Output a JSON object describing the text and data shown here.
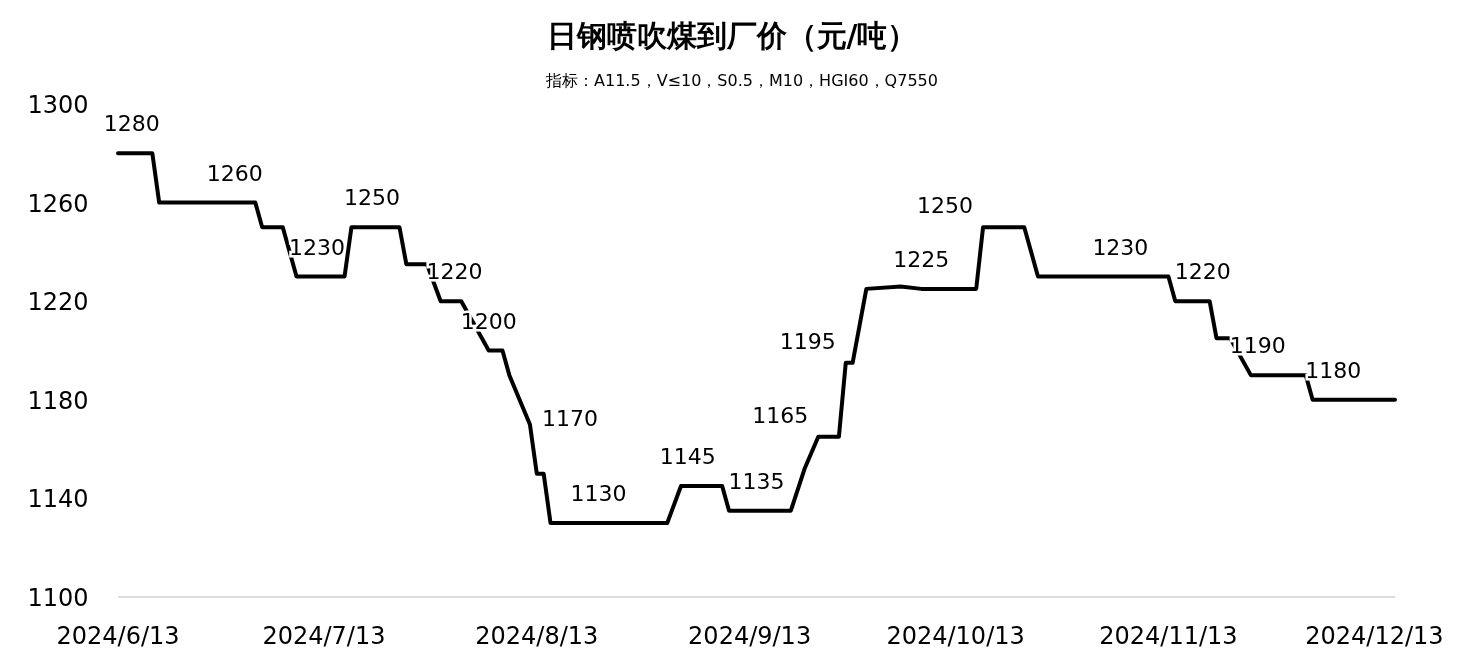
{
  "chart_data": {
    "type": "line",
    "title": "日钢喷吹煤到厂价（元/吨）",
    "subtitle": "指标：A11.5，V≤10，S0.5，M10，HGI60，Q7550",
    "xlim": [
      "2024-06-13",
      "2024-12-16"
    ],
    "xticks": [
      {
        "value": "2024-06-13",
        "label": "2024/6/13"
      },
      {
        "value": "2024-07-13",
        "label": "2024/7/13"
      },
      {
        "value": "2024-08-13",
        "label": "2024/8/13"
      },
      {
        "value": "2024-09-13",
        "label": "2024/9/13"
      },
      {
        "value": "2024-10-13",
        "label": "2024/10/13"
      },
      {
        "value": "2024-11-13",
        "label": "2024/11/13"
      },
      {
        "value": "2024-12-13",
        "label": "2024/12/13"
      }
    ],
    "ylim": [
      1100,
      1300
    ],
    "yticks": [
      1100,
      1140,
      1180,
      1220,
      1260,
      1300
    ],
    "grid": false,
    "marker": "none",
    "line_style": "solid",
    "series": [
      {
        "color": "#000000",
        "x": [
          "2024-06-13",
          "2024-06-18",
          "2024-06-19",
          "2024-07-03",
          "2024-07-04",
          "2024-07-07",
          "2024-07-09",
          "2024-07-16",
          "2024-07-17",
          "2024-07-24",
          "2024-07-25",
          "2024-07-28",
          "2024-07-30",
          "2024-08-02",
          "2024-08-06",
          "2024-08-08",
          "2024-08-09",
          "2024-08-12",
          "2024-08-13",
          "2024-08-14",
          "2024-08-15",
          "2024-09-01",
          "2024-09-03",
          "2024-09-09",
          "2024-09-10",
          "2024-09-19",
          "2024-09-21",
          "2024-09-23",
          "2024-09-26",
          "2024-09-27",
          "2024-09-28",
          "2024-09-30",
          "2024-10-05",
          "2024-10-08",
          "2024-10-16",
          "2024-10-17",
          "2024-10-23",
          "2024-10-25",
          "2024-11-13",
          "2024-11-14",
          "2024-11-19",
          "2024-11-20",
          "2024-11-22",
          "2024-11-25",
          "2024-12-03",
          "2024-12-04",
          "2024-12-16"
        ],
        "values": [
          1280,
          1280,
          1260,
          1260,
          1250,
          1250,
          1230,
          1230,
          1250,
          1250,
          1235,
          1235,
          1220,
          1220,
          1200,
          1200,
          1190,
          1170,
          1150,
          1150,
          1130,
          1130,
          1145,
          1145,
          1135,
          1135,
          1152,
          1165,
          1165,
          1195,
          1195,
          1225,
          1226,
          1225,
          1225,
          1250,
          1250,
          1230,
          1230,
          1220,
          1220,
          1205,
          1205,
          1190,
          1190,
          1180,
          1180
        ]
      }
    ],
    "annotations": [
      {
        "text": "1280",
        "x": "2024-06-15",
        "y": 1280
      },
      {
        "text": "1260",
        "x": "2024-06-30",
        "y": 1260
      },
      {
        "text": "1250",
        "x": "2024-07-20",
        "y": 1250
      },
      {
        "text": "1230",
        "x": "2024-07-12",
        "y": 1230
      },
      {
        "text": "1220",
        "x": "2024-08-01",
        "y": 1220
      },
      {
        "text": "1200",
        "x": "2024-08-06",
        "y": 1200
      },
      {
        "text": "1170",
        "x": "2024-08-12",
        "y": 1170
      },
      {
        "text": "1130",
        "x": "2024-08-22",
        "y": 1130
      },
      {
        "text": "1145",
        "x": "2024-09-04",
        "y": 1145
      },
      {
        "text": "1135",
        "x": "2024-09-14",
        "y": 1135
      },
      {
        "text": "1165",
        "x": "2024-09-23",
        "y": 1165
      },
      {
        "text": "1195",
        "x": "2024-09-27",
        "y": 1195
      },
      {
        "text": "1225",
        "x": "2024-10-08",
        "y": 1225
      },
      {
        "text": "1250",
        "x": "2024-10-17",
        "y": 1250
      },
      {
        "text": "1230",
        "x": "2024-11-06",
        "y": 1230
      },
      {
        "text": "1220",
        "x": "2024-11-18",
        "y": 1220
      },
      {
        "text": "1190",
        "x": "2024-11-26",
        "y": 1190
      },
      {
        "text": "1180",
        "x": "2024-12-07",
        "y": 1180
      }
    ]
  }
}
